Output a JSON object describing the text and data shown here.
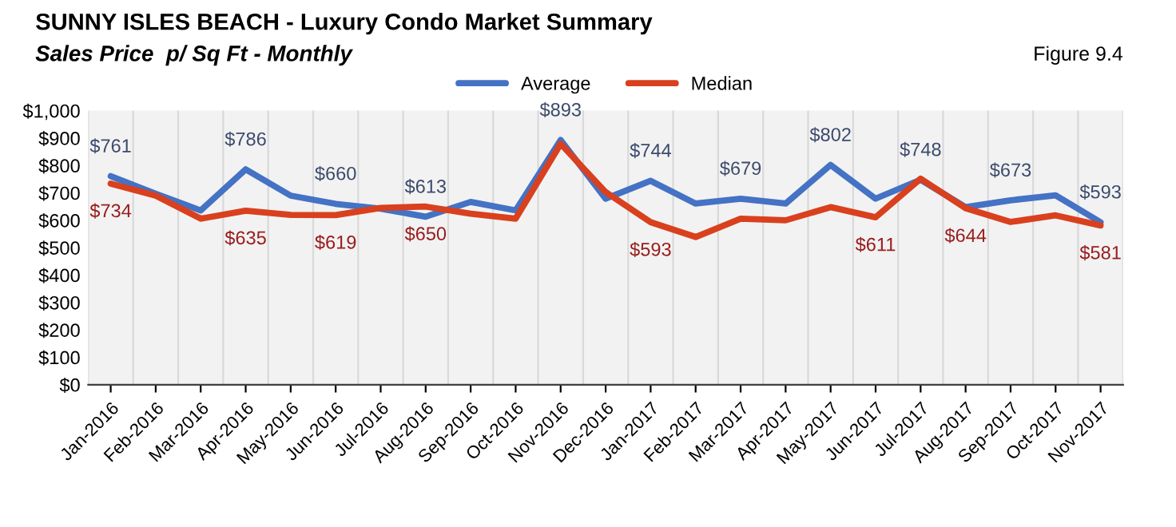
{
  "chart_data": {
    "type": "line",
    "title": "SUNNY ISLES BEACH - Luxury Condo Market Summary",
    "subtitle": "Sales Price  p/ Sq Ft - Monthly",
    "annotations": [
      "Figure 9.4"
    ],
    "categories": [
      "Jan-2016",
      "Feb-2016",
      "Mar-2016",
      "Apr-2016",
      "May-2016",
      "Jun-2016",
      "Jul-2016",
      "Aug-2016",
      "Sep-2016",
      "Oct-2016",
      "Nov-2016",
      "Dec-2016",
      "Jan-2017",
      "Feb-2017",
      "Mar-2017",
      "Apr-2017",
      "May-2017",
      "Jun-2017",
      "Jul-2017",
      "Aug-2017",
      "Sep-2017",
      "Oct-2017",
      "Nov-2017"
    ],
    "series": [
      {
        "name": "Average",
        "color": "#4472c4",
        "values": [
          761,
          697,
          636,
          786,
          690,
          660,
          642,
          613,
          667,
          636,
          893,
          679,
          744,
          661,
          679,
          661,
          802,
          679,
          748,
          648,
          673,
          691,
          593
        ],
        "value_labels": [
          "$761",
          null,
          null,
          "$786",
          null,
          "$660",
          null,
          "$613",
          null,
          null,
          "$893",
          null,
          "$744",
          null,
          "$679",
          null,
          "$802",
          null,
          "$748",
          null,
          "$673",
          null,
          "$593"
        ]
      },
      {
        "name": "Median",
        "color": "#d9401e",
        "values": [
          734,
          690,
          606,
          635,
          620,
          619,
          645,
          650,
          624,
          606,
          879,
          703,
          593,
          539,
          606,
          600,
          648,
          611,
          752,
          644,
          594,
          618,
          581
        ],
        "value_labels": [
          "$734",
          null,
          null,
          "$635",
          null,
          "$619",
          null,
          "$650",
          null,
          null,
          null,
          null,
          "$593",
          null,
          null,
          null,
          null,
          "$611",
          null,
          "$644",
          null,
          null,
          "$581"
        ]
      }
    ],
    "ylim": [
      0,
      1000
    ],
    "yticks": [
      {
        "value": 0,
        "label": "$0"
      },
      {
        "value": 100,
        "label": "$100"
      },
      {
        "value": 200,
        "label": "$200"
      },
      {
        "value": 300,
        "label": "$300"
      },
      {
        "value": 400,
        "label": "$400"
      },
      {
        "value": 500,
        "label": "$500"
      },
      {
        "value": 600,
        "label": "$600"
      },
      {
        "value": 700,
        "label": "$700"
      },
      {
        "value": 800,
        "label": "$800"
      },
      {
        "value": 900,
        "label": "$900"
      },
      {
        "value": 1000,
        "label": "$1,000"
      }
    ],
    "grid": "x",
    "legend": "top",
    "line_style": "solid",
    "marker": "none"
  }
}
